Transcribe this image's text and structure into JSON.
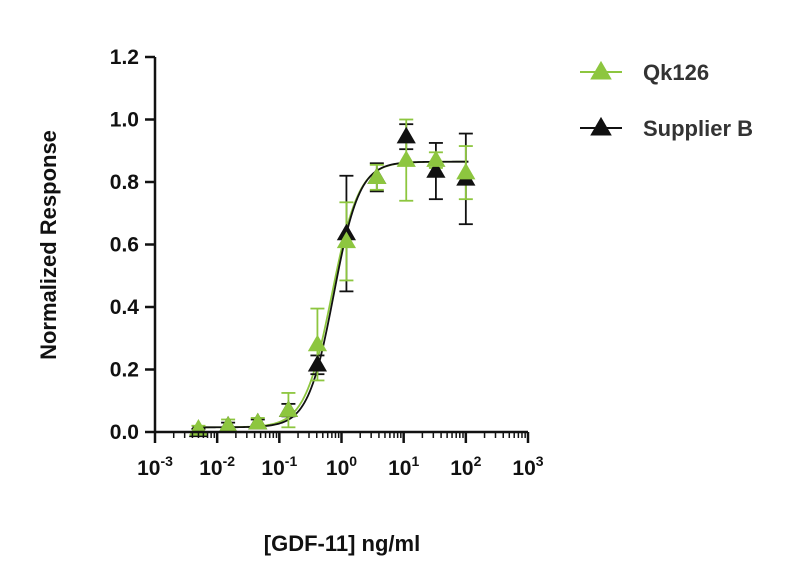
{
  "chart_data": {
    "type": "scatter",
    "xlabel": "[GDF-11] ng/ml",
    "ylabel": "Normalized Response",
    "xscale": "log",
    "xlim": [
      0.001,
      1000
    ],
    "ylim": [
      0,
      1.2
    ],
    "x_tick_labels": [
      {
        "base": "10",
        "exp": "-3"
      },
      {
        "base": "10",
        "exp": "-2"
      },
      {
        "base": "10",
        "exp": "-1"
      },
      {
        "base": "10",
        "exp": "0"
      },
      {
        "base": "10",
        "exp": "1"
      },
      {
        "base": "10",
        "exp": "2"
      },
      {
        "base": "10",
        "exp": "3"
      }
    ],
    "y_tick_labels": [
      "0.0",
      "0.2",
      "0.4",
      "0.6",
      "0.8",
      "1.0",
      "1.2"
    ],
    "grid": false,
    "legend_position": "top-right",
    "series": [
      {
        "name": "Qk126",
        "color": "#8dc63f",
        "marker": "triangle",
        "fit": {
          "bottom": 0.015,
          "top": 0.865,
          "ec50": 0.7,
          "hill": 2.0
        },
        "points": [
          {
            "x": 0.005,
            "y": 0.01,
            "err": 0.01
          },
          {
            "x": 0.015,
            "y": 0.02,
            "err": 0.02
          },
          {
            "x": 0.045,
            "y": 0.03,
            "err": 0.015
          },
          {
            "x": 0.14,
            "y": 0.07,
            "err": 0.055
          },
          {
            "x": 0.41,
            "y": 0.28,
            "err": 0.115
          },
          {
            "x": 1.2,
            "y": 0.61,
            "err": 0.125
          },
          {
            "x": 3.7,
            "y": 0.815,
            "err": 0.04
          },
          {
            "x": 11,
            "y": 0.87,
            "err": 0.13
          },
          {
            "x": 33,
            "y": 0.87,
            "err": 0.025
          },
          {
            "x": 100,
            "y": 0.83,
            "err": 0.085
          }
        ]
      },
      {
        "name": "Supplier B",
        "color": "#111111",
        "marker": "triangle",
        "fit": {
          "bottom": 0.015,
          "top": 0.865,
          "ec50": 0.75,
          "hill": 2.1
        },
        "points": [
          {
            "x": 0.005,
            "y": 0.005,
            "err": 0.005
          },
          {
            "x": 0.015,
            "y": 0.02,
            "err": 0.01
          },
          {
            "x": 0.045,
            "y": 0.03,
            "err": 0.01
          },
          {
            "x": 0.14,
            "y": 0.07,
            "err": 0.02
          },
          {
            "x": 0.41,
            "y": 0.215,
            "err": 0.03
          },
          {
            "x": 1.2,
            "y": 0.635,
            "err": 0.185
          },
          {
            "x": 3.7,
            "y": 0.815,
            "err": 0.045
          },
          {
            "x": 11,
            "y": 0.945,
            "err": 0.04
          },
          {
            "x": 33,
            "y": 0.835,
            "err": 0.09
          },
          {
            "x": 100,
            "y": 0.81,
            "err": 0.145
          }
        ]
      }
    ]
  }
}
